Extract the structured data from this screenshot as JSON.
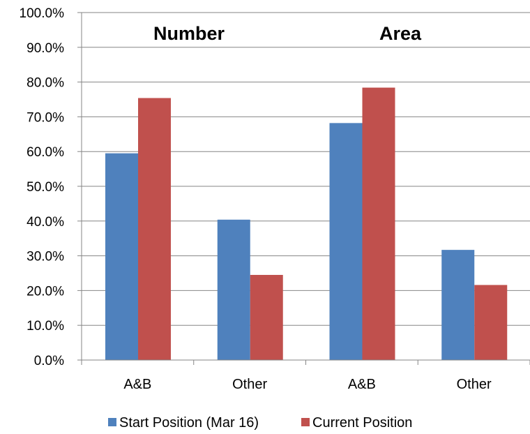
{
  "chart_data": {
    "type": "bar",
    "categories": [
      "A&B",
      "Other",
      "A&B",
      "Other"
    ],
    "series": [
      {
        "name": "Start Position (Mar 16)",
        "values": [
          59.5,
          40.4,
          68.2,
          31.7
        ],
        "color": "#4F81BD"
      },
      {
        "name": "Current Position",
        "values": [
          75.4,
          24.5,
          78.4,
          21.6
        ],
        "color": "#C0504D"
      }
    ],
    "ylim": [
      0,
      100
    ],
    "yticks": [
      "0.0%",
      "10.0%",
      "20.0%",
      "30.0%",
      "40.0%",
      "50.0%",
      "60.0%",
      "70.0%",
      "80.0%",
      "90.0%",
      "100.0%"
    ],
    "annotations": [
      "Number",
      "Area"
    ],
    "grid": true,
    "legend_position": "bottom"
  }
}
